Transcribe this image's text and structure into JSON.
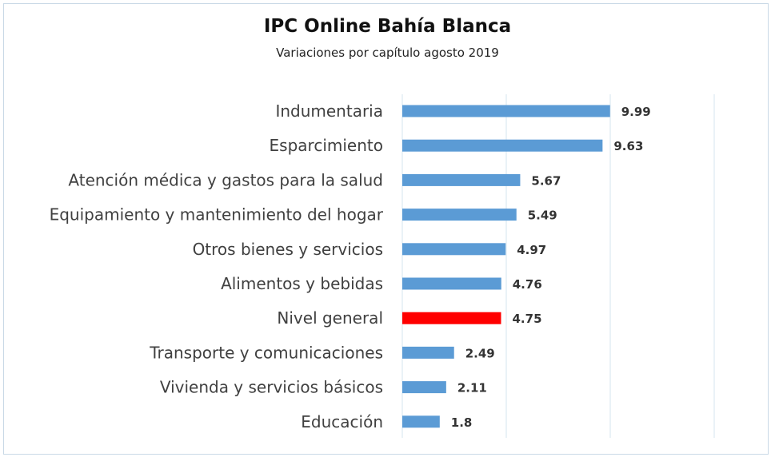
{
  "chart_data": {
    "type": "bar",
    "orientation": "horizontal",
    "title": "IPC Online Bahía Blanca",
    "subtitle": "Variaciones por capítulo agosto 2019",
    "categories": [
      "Indumentaria",
      "Esparcimiento",
      "Atención médica y gastos para la salud",
      "Equipamiento y mantenimiento del hogar",
      "Otros bienes y servicios",
      "Alimentos y bebidas",
      "Nivel general",
      "Transporte y comunicaciones",
      "Vivienda y servicios básicos",
      "Educación"
    ],
    "values": [
      9.99,
      9.63,
      5.67,
      5.49,
      4.97,
      4.76,
      4.75,
      2.49,
      2.11,
      1.8
    ],
    "value_labels": [
      "9.99",
      "9.63",
      "5.67",
      "5.49",
      "4.97",
      "4.76",
      "4.75",
      "2.49",
      "2.11",
      "1.8"
    ],
    "highlight_index": 6,
    "xlim": [
      0,
      15
    ],
    "grid": true,
    "legend": "none",
    "colors": {
      "bar": "#5b9bd5",
      "highlight": "#ff0000",
      "grid": "#d6e4ef"
    }
  }
}
